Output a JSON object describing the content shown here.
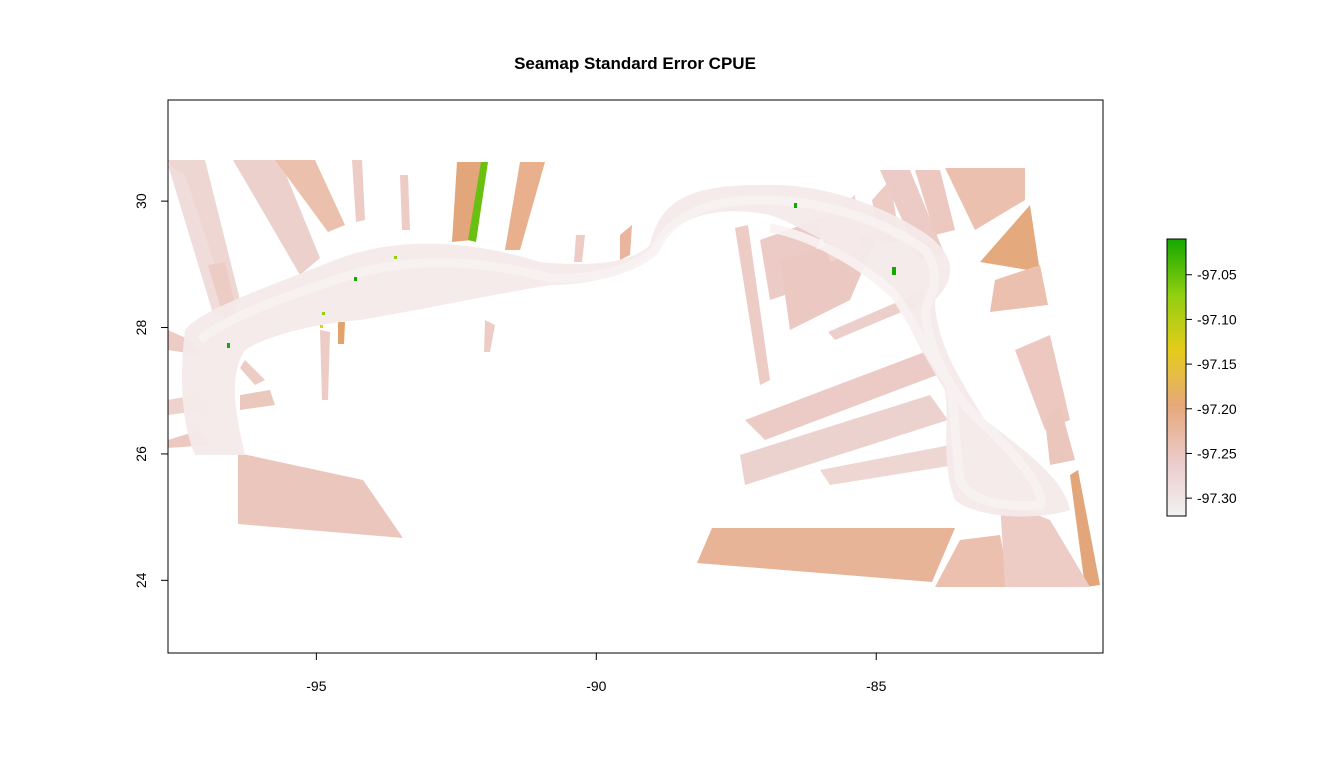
{
  "map_title": "Seamap Standard Error CPUE",
  "map_axes": {
    "x_ticks": [
      -95,
      -90,
      -85
    ],
    "x_tick_labels": [
      "-95",
      "-90",
      "-85"
    ],
    "y_ticks": [
      24,
      26,
      28,
      30
    ],
    "y_tick_labels": [
      "24",
      "26",
      "28",
      "30"
    ],
    "xlim": [
      -97.65,
      -80.95
    ],
    "ylim": [
      22.85,
      31.6
    ]
  },
  "legend": {
    "placement": "right",
    "range": [
      -97.32,
      -97.01
    ],
    "ticks": [
      -97.05,
      -97.1,
      -97.15,
      -97.2,
      -97.25,
      -97.3
    ],
    "tick_labels": [
      "-97.05",
      "-97.10",
      "-97.15",
      "-97.20",
      "-97.25",
      "-97.30"
    ],
    "colors": [
      "#f2f2f2",
      "#eccaca",
      "#e6a87a",
      "#e5cc1a",
      "#8fcf10",
      "#14a800"
    ]
  },
  "colors": {
    "low": "#f2f2f2",
    "mid": "#ecc2b4",
    "mid_high": "#e8b090",
    "high": "#e3a264",
    "peak_green": "#6ac010",
    "dark_green": "#14a800",
    "frame": "#000000"
  }
}
